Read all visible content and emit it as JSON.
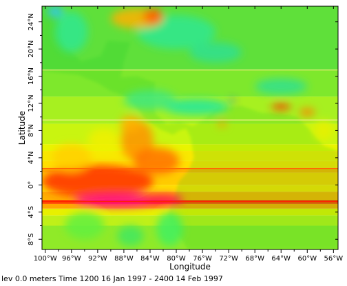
{
  "chart_data": {
    "type": "heatmap",
    "xlabel": "Longitude",
    "ylabel": "Latitude",
    "xlim": [
      -100.5,
      -55.3
    ],
    "ylim": [
      -9.5,
      26.3
    ],
    "x_ticks": [
      {
        "value": -100,
        "label": "100°W"
      },
      {
        "value": -96,
        "label": "96°W"
      },
      {
        "value": -92,
        "label": "92°W"
      },
      {
        "value": -88,
        "label": "88°W"
      },
      {
        "value": -84,
        "label": "84°W"
      },
      {
        "value": -80,
        "label": "80°W"
      },
      {
        "value": -76,
        "label": "76°W"
      },
      {
        "value": -72,
        "label": "72°W"
      },
      {
        "value": -68,
        "label": "68°W"
      },
      {
        "value": -64,
        "label": "64°W"
      },
      {
        "value": -60,
        "label": "60°W"
      },
      {
        "value": -56,
        "label": "56°W"
      }
    ],
    "y_ticks": [
      {
        "value": 24,
        "label": "24°N"
      },
      {
        "value": 20,
        "label": "20°N"
      },
      {
        "value": 16,
        "label": "16°N"
      },
      {
        "value": 12,
        "label": "12°N"
      },
      {
        "value": 8,
        "label": "8°N"
      },
      {
        "value": 4,
        "label": "4°N"
      },
      {
        "value": 0,
        "label": "0°"
      },
      {
        "value": -4,
        "label": "4°S"
      },
      {
        "value": -8,
        "label": "8°S"
      }
    ],
    "colormap": [
      "#0000ff",
      "#00ffff",
      "#00ff80",
      "#80ff00",
      "#ffff00",
      "#ffa000",
      "#ff3000",
      "#ff0090"
    ],
    "bands": [
      {
        "lat_from": 26.3,
        "lat_to": 17.0,
        "color": "#5fe03a"
      },
      {
        "lat_from": 17.0,
        "lat_to": 13.0,
        "color": "#7ee82c"
      },
      {
        "lat_from": 13.0,
        "lat_to": 9.0,
        "color": "#a7f020"
      },
      {
        "lat_from": 9.0,
        "lat_to": 6.0,
        "color": "#c9f510"
      },
      {
        "lat_from": 6.0,
        "lat_to": 5.0,
        "color": "#e8f500"
      },
      {
        "lat_from": 5.0,
        "lat_to": 3.5,
        "color": "#f8e800"
      },
      {
        "lat_from": 3.5,
        "lat_to": 2.5,
        "color": "#ffe000"
      },
      {
        "lat_from": 2.5,
        "lat_to": 1.8,
        "color": "#ffb000"
      },
      {
        "lat_from": 1.8,
        "lat_to": 0.0,
        "color": "#ffcc00"
      },
      {
        "lat_from": 0.0,
        "lat_to": -1.0,
        "color": "#ffdd00"
      },
      {
        "lat_from": -1.0,
        "lat_to": -2.2,
        "color": "#ffb000"
      },
      {
        "lat_from": -2.2,
        "lat_to": -2.8,
        "color": "#ff4800"
      },
      {
        "lat_from": -2.8,
        "lat_to": -3.5,
        "color": "#ffa800"
      },
      {
        "lat_from": -3.5,
        "lat_to": -4.5,
        "color": "#e8f000"
      },
      {
        "lat_from": -4.5,
        "lat_to": -6.0,
        "color": "#c0f018"
      },
      {
        "lat_from": -6.0,
        "lat_to": -9.5,
        "color": "#90ea28"
      }
    ],
    "blobs": [
      {
        "lon": -92,
        "lat": 0.5,
        "rx": 8.5,
        "ry": 2.4,
        "color": "#ff3000"
      },
      {
        "lon": -89,
        "lat": -2.3,
        "rx": 6.5,
        "ry": 1.0,
        "color": "#ff0090"
      },
      {
        "lon": -82,
        "lat": -2.2,
        "rx": 3.0,
        "ry": 0.8,
        "color": "#ff0060"
      },
      {
        "lon": -86,
        "lat": 6.5,
        "rx": 2.5,
        "ry": 3.0,
        "color": "#ff9000"
      },
      {
        "lon": -83,
        "lat": 3.5,
        "rx": 3.5,
        "ry": 2.0,
        "color": "#ff7000"
      },
      {
        "lon": -87,
        "lat": 9.0,
        "rx": 1.6,
        "ry": 1.2,
        "color": "#ffb000"
      },
      {
        "lon": -96,
        "lat": 4.0,
        "rx": 3.0,
        "ry": 2.0,
        "color": "#ffd000"
      },
      {
        "lon": -91,
        "lat": 6.5,
        "rx": 2.5,
        "ry": 1.8,
        "color": "#f0f000"
      },
      {
        "lon": -81,
        "lat": -6.5,
        "rx": 2.0,
        "ry": 2.5,
        "color": "#40f060"
      },
      {
        "lon": -94,
        "lat": -6.0,
        "rx": 3.0,
        "ry": 2.0,
        "color": "#60f040"
      },
      {
        "lon": -87,
        "lat": -7.5,
        "rx": 2.0,
        "ry": 1.5,
        "color": "#40e860"
      },
      {
        "lon": -64,
        "lat": 11.5,
        "rx": 1.5,
        "ry": 0.5,
        "color": "#ff3000"
      },
      {
        "lon": -60,
        "lat": 10.7,
        "rx": 1.2,
        "ry": 0.6,
        "color": "#ff8000"
      },
      {
        "lon": -73,
        "lat": 9.0,
        "rx": 0.6,
        "ry": 0.5,
        "color": "#ff9000"
      },
      {
        "lon": -71.5,
        "lat": 12.4,
        "rx": 0.4,
        "ry": 0.3,
        "color": "#0040ff"
      },
      {
        "lon": -77,
        "lat": 11.5,
        "rx": 5.0,
        "ry": 1.2,
        "color": "#20e8a0"
      },
      {
        "lon": -84,
        "lat": 12.5,
        "rx": 4.0,
        "ry": 1.5,
        "color": "#40e880"
      },
      {
        "lon": -80,
        "lat": 22.5,
        "rx": 6.0,
        "ry": 2.5,
        "color": "#30e890"
      },
      {
        "lon": -74,
        "lat": 19.5,
        "rx": 4.0,
        "ry": 1.5,
        "color": "#30e090"
      },
      {
        "lon": -96,
        "lat": 22.5,
        "rx": 2.5,
        "ry": 3.0,
        "color": "#30e890"
      },
      {
        "lon": -86,
        "lat": 24.5,
        "rx": 4.0,
        "ry": 1.5,
        "color": "#ffb000"
      },
      {
        "lon": -83.5,
        "lat": 24.8,
        "rx": 1.5,
        "ry": 1.2,
        "color": "#ff6000"
      },
      {
        "lon": -64,
        "lat": 14.5,
        "rx": 4.0,
        "ry": 1.2,
        "color": "#30e090"
      },
      {
        "lon": -98.5,
        "lat": 25.5,
        "rx": 1.2,
        "ry": 0.8,
        "color": "#30c8ff"
      },
      {
        "lon": -57.5,
        "lat": 8.0,
        "rx": 1.5,
        "ry": 1.5,
        "color": "#e8f000"
      }
    ],
    "land_mask": [
      [
        -100.5,
        16.8
      ],
      [
        -95,
        16.2
      ],
      [
        -92,
        15.0
      ],
      [
        -90,
        13.8
      ],
      [
        -88,
        13.2
      ],
      [
        -86.5,
        12.0
      ],
      [
        -85.7,
        11.0
      ],
      [
        -85,
        10.0
      ],
      [
        -84,
        9.2
      ],
      [
        -82.5,
        8.2
      ],
      [
        -80.5,
        7.4
      ],
      [
        -79.5,
        8.0
      ],
      [
        -78.5,
        8.3
      ],
      [
        -77.8,
        7.0
      ],
      [
        -77.3,
        4.0
      ],
      [
        -78.2,
        2.0
      ],
      [
        -79.6,
        0.5
      ],
      [
        -80.2,
        -1.5
      ],
      [
        -80.8,
        -2.8
      ],
      [
        -81.3,
        -4.5
      ],
      [
        -80.5,
        -6.3
      ],
      [
        -79.2,
        -8.0
      ],
      [
        -78.2,
        -9.5
      ],
      [
        -55.3,
        -9.5
      ],
      [
        -55.3,
        5.0
      ],
      [
        -57.5,
        5.8
      ],
      [
        -60,
        8.5
      ],
      [
        -61.5,
        10.0
      ],
      [
        -64,
        10.5
      ],
      [
        -67,
        10.6
      ],
      [
        -70,
        11.6
      ],
      [
        -72,
        11.5
      ],
      [
        -74,
        11.2
      ],
      [
        -76,
        9.5
      ],
      [
        -77.5,
        8.7
      ],
      [
        -79.5,
        9.3
      ],
      [
        -81.5,
        9.0
      ],
      [
        -83.2,
        10.5
      ],
      [
        -83.6,
        13.0
      ],
      [
        -83.2,
        15.0
      ],
      [
        -86,
        16.0
      ],
      [
        -88.5,
        15.8
      ],
      [
        -88,
        18.2
      ],
      [
        -87,
        21.0
      ],
      [
        -90.5,
        21.2
      ],
      [
        -91.5,
        19.0
      ],
      [
        -94.5,
        18.2
      ],
      [
        -97,
        20.5
      ],
      [
        -97.6,
        23.5
      ],
      [
        -97.6,
        26.3
      ],
      [
        -100.5,
        26.3
      ]
    ],
    "thin_lines": [
      {
        "lat": 16.9,
        "color": "#e8e870"
      },
      {
        "lat": 9.55,
        "color": "#f0f080"
      },
      {
        "lat": 2.4,
        "color": "#ff6a00"
      },
      {
        "lat": -2.45,
        "color": "#ff2000"
      }
    ]
  },
  "footer": {
    "text": "lev 0.0 meters  Time 1200 16 Jan 1997 - 2400 14 Feb 1997"
  }
}
